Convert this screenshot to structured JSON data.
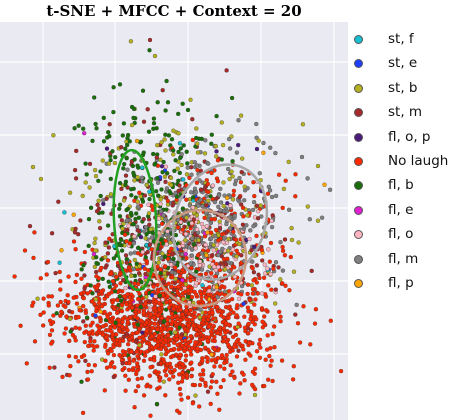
{
  "chart_data": {
    "type": "scatter",
    "title": "t-SNE + MFCC + Context = 20",
    "xlabel": "",
    "ylabel": "",
    "grid": true,
    "axes_background": "#eaeaf2",
    "tick_labels_visible": false,
    "legend_placement": "right",
    "series": [
      {
        "name": "st, f",
        "color": "#17becf"
      },
      {
        "name": "st, e",
        "color": "#1f3fff"
      },
      {
        "name": "st, b",
        "color": "#b5b020"
      },
      {
        "name": "st, m",
        "color": "#a52a2a"
      },
      {
        "name": "fl, o, p",
        "color": "#4b1a7a"
      },
      {
        "name": "No laugh",
        "color": "#ff2a00"
      },
      {
        "name": "fl, b",
        "color": "#1a6e0a"
      },
      {
        "name": "fl, e",
        "color": "#e020d0"
      },
      {
        "name": "fl, o",
        "color": "#ffb6c1"
      },
      {
        "name": "fl, m",
        "color": "#808080"
      },
      {
        "name": "fl, p",
        "color": "#ffa500"
      }
    ],
    "ellipses": [
      {
        "series": "fl, b",
        "color": "#22a022"
      },
      {
        "series": "fl, m",
        "color": "#a8a8a8"
      },
      {
        "series": "fl, o",
        "color": "#c89a82"
      }
    ]
  }
}
